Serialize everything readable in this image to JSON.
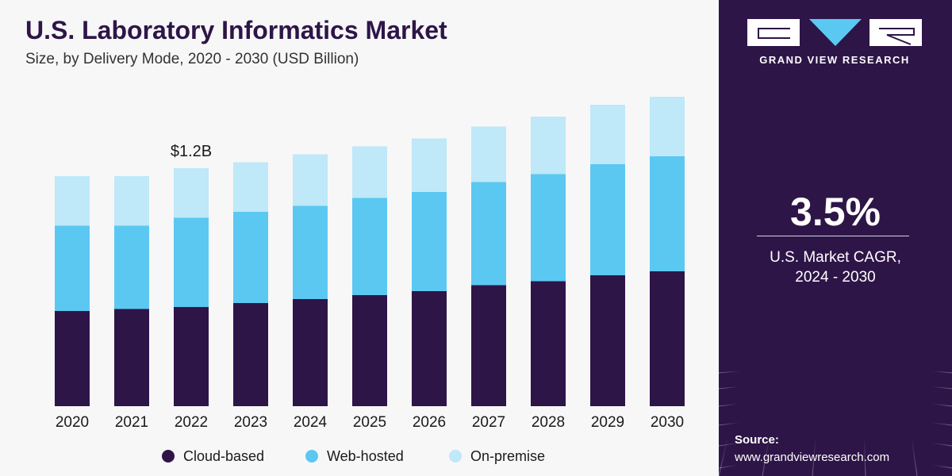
{
  "header": {
    "title": "U.S. Laboratory Informatics Market",
    "subtitle": "Size, by Delivery Mode, 2020 - 2030 (USD Billion)"
  },
  "chart_data": {
    "type": "bar",
    "stacked": true,
    "categories": [
      "2020",
      "2021",
      "2022",
      "2023",
      "2024",
      "2025",
      "2026",
      "2027",
      "2028",
      "2029",
      "2030"
    ],
    "series": [
      {
        "name": "Cloud-based",
        "color": "#2e1547",
        "values": [
          0.48,
          0.49,
          0.5,
          0.52,
          0.54,
          0.56,
          0.58,
          0.61,
          0.63,
          0.66,
          0.68
        ]
      },
      {
        "name": "Web-hosted",
        "color": "#5bc8f2",
        "values": [
          0.43,
          0.42,
          0.45,
          0.46,
          0.47,
          0.49,
          0.5,
          0.52,
          0.54,
          0.56,
          0.58
        ]
      },
      {
        "name": "On-premise",
        "color": "#bfe8f8",
        "values": [
          0.25,
          0.25,
          0.25,
          0.25,
          0.26,
          0.26,
          0.27,
          0.28,
          0.29,
          0.3,
          0.3
        ]
      }
    ],
    "annotations": [
      {
        "category": "2022",
        "text": "$1.2B"
      }
    ],
    "ylim": [
      0,
      1.6
    ],
    "axes_visible": false,
    "legend_position": "bottom"
  },
  "sidebar": {
    "brand": "GRAND VIEW RESEARCH",
    "cagr_value": "3.5%",
    "cagr_label_line1": "U.S. Market CAGR,",
    "cagr_label_line2": "2024 - 2030",
    "source_title": "Source:",
    "source_url": "www.grandviewresearch.com"
  }
}
